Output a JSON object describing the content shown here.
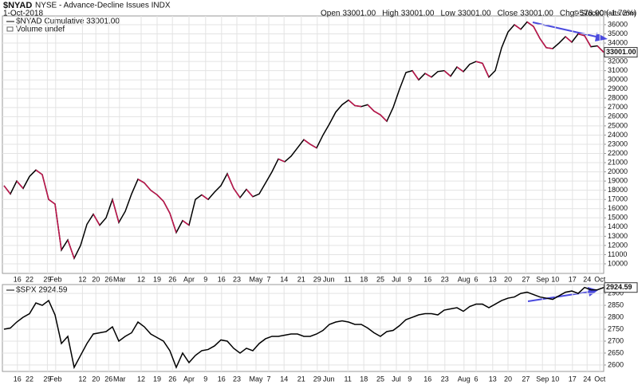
{
  "header": {
    "symbol": "$NYAD",
    "name": "NYSE - Advance-Decline Issues INDX",
    "date": "1-Oct-2018",
    "quote": [
      {
        "label": "Open",
        "value": "33001.00"
      },
      {
        "label": "High",
        "value": "33001.00"
      },
      {
        "label": "Low",
        "value": "33001.00"
      },
      {
        "label": "Close",
        "value": "33001.00"
      },
      {
        "label": "Chg",
        "value": "-578.00 (-1.72%)"
      }
    ],
    "credit": "© StockCharts.com",
    "volume_note": "Volume undef"
  },
  "chart_data": [
    {
      "type": "line",
      "grid": true,
      "color": "#000000",
      "down_color": "#c0144c",
      "series": [
        {
          "name": "$NYAD Cumulative 33001.00",
          "color": "#000000",
          "values": [
            18500,
            17600,
            19000,
            18200,
            19500,
            20200,
            19700,
            17000,
            16500,
            11500,
            12600,
            10600,
            12000,
            14300,
            15400,
            14200,
            15000,
            17000,
            14500,
            15700,
            17600,
            19200,
            18800,
            18000,
            17500,
            16800,
            15500,
            13400,
            14700,
            14200,
            17000,
            17500,
            17000,
            17800,
            18500,
            19800,
            18200,
            17200,
            18100,
            17300,
            17600,
            18800,
            20000,
            21400,
            21100,
            21700,
            22600,
            23500,
            23000,
            22600,
            24000,
            25200,
            26500,
            27300,
            27800,
            27200,
            27100,
            27300,
            26600,
            26200,
            25500,
            27000,
            29000,
            30800,
            31000,
            30000,
            30700,
            30300,
            30900,
            31000,
            30400,
            31400,
            30900,
            31700,
            32000,
            31800,
            30300,
            31000,
            33500,
            35200,
            36000,
            35500,
            36300,
            35800,
            34500,
            33500,
            33400,
            34000,
            34700,
            34100,
            35000,
            34800,
            33600,
            33700,
            33001
          ]
        }
      ],
      "last_label": "33001.00",
      "xlim": [
        0,
        94
      ],
      "ylim": [
        8960,
        36950
      ],
      "yticks": [
        10000,
        11000,
        12000,
        13000,
        14000,
        15000,
        16000,
        17000,
        18000,
        19000,
        20000,
        21000,
        22000,
        23000,
        24000,
        25000,
        26000,
        27000,
        28000,
        29000,
        30000,
        31000,
        32000,
        33000,
        34000,
        35000,
        36000
      ],
      "xticks": [
        {
          "value": 2.1,
          "label": "16"
        },
        {
          "value": 4,
          "label": "22"
        },
        {
          "value": 6.8,
          "label": "29"
        },
        {
          "value": 8.1,
          "label": "Feb"
        },
        {
          "value": 12.3,
          "label": "12"
        },
        {
          "value": 14.4,
          "label": "20"
        },
        {
          "value": 16.4,
          "label": "26"
        },
        {
          "value": 18.1,
          "label": "Mar"
        },
        {
          "value": 21.5,
          "label": "12"
        },
        {
          "value": 24,
          "label": "19"
        },
        {
          "value": 26.4,
          "label": "26"
        },
        {
          "value": 29,
          "label": "Apr"
        },
        {
          "value": 31.6,
          "label": "9"
        },
        {
          "value": 34.1,
          "label": "16"
        },
        {
          "value": 36.5,
          "label": "23"
        },
        {
          "value": 39.5,
          "label": "May"
        },
        {
          "value": 41.5,
          "label": "7"
        },
        {
          "value": 43.9,
          "label": "14"
        },
        {
          "value": 46.6,
          "label": "21"
        },
        {
          "value": 49.1,
          "label": "29"
        },
        {
          "value": 50.9,
          "label": "Jun"
        },
        {
          "value": 53.9,
          "label": "11"
        },
        {
          "value": 56.4,
          "label": "18"
        },
        {
          "value": 59,
          "label": "25"
        },
        {
          "value": 61.5,
          "label": "Jul"
        },
        {
          "value": 63.6,
          "label": "9"
        },
        {
          "value": 66.4,
          "label": "16"
        },
        {
          "value": 69.1,
          "label": "23"
        },
        {
          "value": 72.1,
          "label": "Aug"
        },
        {
          "value": 74,
          "label": "6"
        },
        {
          "value": 76.6,
          "label": "13"
        },
        {
          "value": 79,
          "label": "20"
        },
        {
          "value": 81.8,
          "label": "27"
        },
        {
          "value": 84.4,
          "label": "Sep"
        },
        {
          "value": 86.4,
          "label": "10"
        },
        {
          "value": 89.1,
          "label": "17"
        },
        {
          "value": 91.4,
          "label": "24"
        },
        {
          "value": 93.4,
          "label": "Oct"
        }
      ]
    },
    {
      "type": "line",
      "grid": true,
      "color": "#000000",
      "series": [
        {
          "name": "$SPX 2924.59",
          "color": "#000000",
          "values": [
            2750,
            2755,
            2780,
            2800,
            2815,
            2860,
            2850,
            2870,
            2810,
            2690,
            2720,
            2590,
            2640,
            2690,
            2730,
            2735,
            2740,
            2760,
            2700,
            2720,
            2735,
            2780,
            2760,
            2730,
            2715,
            2700,
            2660,
            2590,
            2650,
            2610,
            2640,
            2660,
            2665,
            2680,
            2705,
            2700,
            2670,
            2650,
            2670,
            2660,
            2690,
            2710,
            2720,
            2720,
            2725,
            2730,
            2730,
            2720,
            2720,
            2730,
            2745,
            2770,
            2780,
            2785,
            2780,
            2770,
            2770,
            2755,
            2735,
            2720,
            2740,
            2745,
            2765,
            2790,
            2800,
            2810,
            2815,
            2815,
            2810,
            2830,
            2835,
            2840,
            2825,
            2845,
            2855,
            2855,
            2840,
            2855,
            2870,
            2880,
            2885,
            2900,
            2905,
            2895,
            2885,
            2880,
            2875,
            2890,
            2905,
            2910,
            2900,
            2925,
            2915,
            2915,
            2924.59
          ]
        }
      ],
      "last_label": "2924.59",
      "xlim": [
        0,
        94
      ],
      "ylim": [
        2573,
        2937
      ],
      "yticks": [
        2600,
        2650,
        2700,
        2750,
        2800,
        2850,
        2900
      ],
      "xticks": [
        {
          "value": 2.1,
          "label": "16"
        },
        {
          "value": 4,
          "label": "22"
        },
        {
          "value": 6.8,
          "label": "29"
        },
        {
          "value": 8.1,
          "label": "Feb"
        },
        {
          "value": 12.3,
          "label": "12"
        },
        {
          "value": 14.4,
          "label": "20"
        },
        {
          "value": 16.4,
          "label": "26"
        },
        {
          "value": 18.1,
          "label": "Mar"
        },
        {
          "value": 21.5,
          "label": "12"
        },
        {
          "value": 24,
          "label": "19"
        },
        {
          "value": 26.4,
          "label": "26"
        },
        {
          "value": 29,
          "label": "Apr"
        },
        {
          "value": 31.6,
          "label": "9"
        },
        {
          "value": 34.1,
          "label": "16"
        },
        {
          "value": 36.5,
          "label": "23"
        },
        {
          "value": 39.5,
          "label": "May"
        },
        {
          "value": 41.5,
          "label": "7"
        },
        {
          "value": 43.9,
          "label": "14"
        },
        {
          "value": 46.6,
          "label": "21"
        },
        {
          "value": 49.1,
          "label": "29"
        },
        {
          "value": 50.9,
          "label": "Jun"
        },
        {
          "value": 53.9,
          "label": "11"
        },
        {
          "value": 56.4,
          "label": "18"
        },
        {
          "value": 59,
          "label": "25"
        },
        {
          "value": 61.5,
          "label": "Jul"
        },
        {
          "value": 63.6,
          "label": "9"
        },
        {
          "value": 66.4,
          "label": "16"
        },
        {
          "value": 69.1,
          "label": "23"
        },
        {
          "value": 72.1,
          "label": "Aug"
        },
        {
          "value": 74,
          "label": "6"
        },
        {
          "value": 76.6,
          "label": "13"
        },
        {
          "value": 79,
          "label": "20"
        },
        {
          "value": 81.8,
          "label": "27"
        },
        {
          "value": 84.4,
          "label": "Sep"
        },
        {
          "value": 86.4,
          "label": "10"
        },
        {
          "value": 89.1,
          "label": "17"
        },
        {
          "value": 91.4,
          "label": "24"
        },
        {
          "value": 93.4,
          "label": "Oct"
        }
      ]
    }
  ]
}
